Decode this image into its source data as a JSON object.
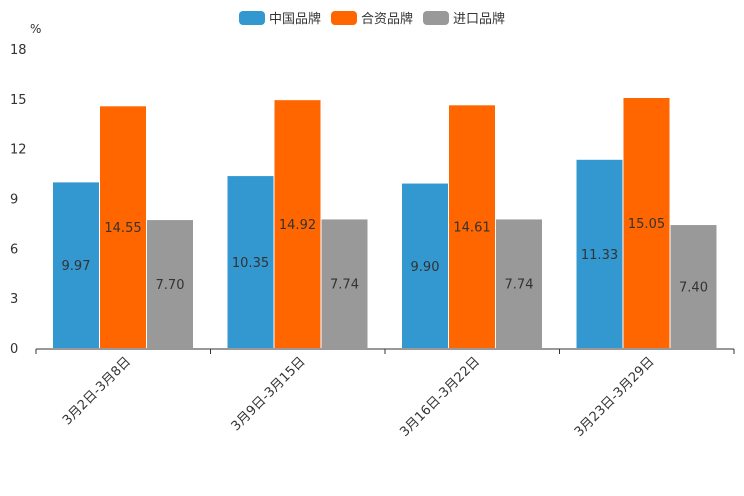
{
  "chart_data": {
    "type": "bar",
    "unit_label": "%",
    "categories": [
      "3月2日-3月8日",
      "3月9日-3月15日",
      "3月16日-3月22日",
      "3月23日-3月29日"
    ],
    "series": [
      {
        "name": "中国品牌",
        "color": "#3498d0",
        "values": [
          9.97,
          10.35,
          9.9,
          11.33
        ]
      },
      {
        "name": "合资品牌",
        "color": "#ff6600",
        "values": [
          14.55,
          14.92,
          14.61,
          15.05
        ]
      },
      {
        "name": "进口品牌",
        "color": "#999999",
        "values": [
          7.7,
          7.74,
          7.74,
          7.4
        ]
      }
    ],
    "y_ticks": [
      0,
      3,
      6,
      9,
      12,
      15,
      18
    ],
    "ylim": [
      0,
      18
    ]
  }
}
